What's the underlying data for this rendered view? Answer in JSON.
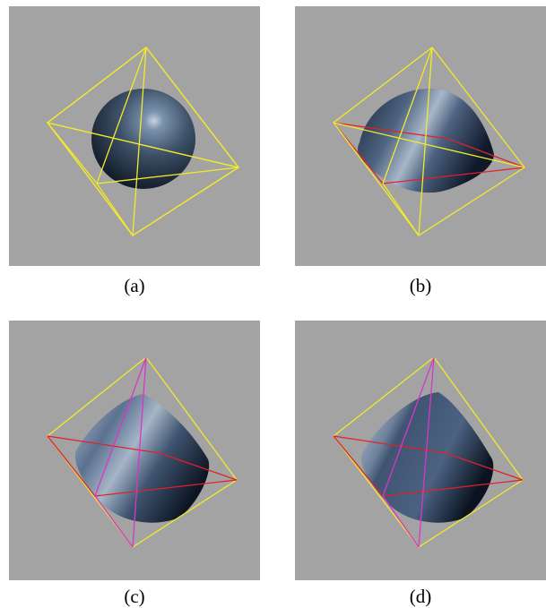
{
  "figures": [
    {
      "caption": "(a)"
    },
    {
      "caption": "(b)"
    },
    {
      "caption": "(c)"
    },
    {
      "caption": "(d)"
    }
  ],
  "colors": {
    "background": "#a3a3a3",
    "outer_octahedron": "#f2ea2a",
    "inner_square": "#e0212b",
    "inner_diagonal": "#d936c9",
    "shape_body": "#3d5168",
    "shape_highlight": "#b9c6d6"
  }
}
